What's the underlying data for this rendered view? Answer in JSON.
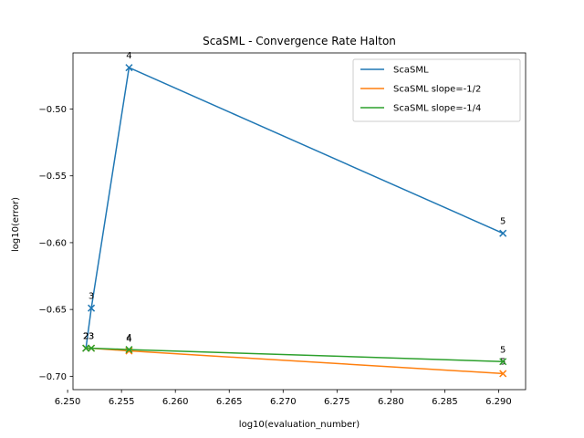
{
  "chart_data": {
    "type": "line",
    "title": "ScaSML - Convergence Rate Halton",
    "xlabel": "log10(evaluation_number)",
    "ylabel": "log10(error)",
    "xlim": [
      6.2505,
      6.2925
    ],
    "ylim": [
      -0.71,
      -0.458
    ],
    "xticks": [
      6.25,
      6.255,
      6.26,
      6.265,
      6.27,
      6.275,
      6.28,
      6.285,
      6.29
    ],
    "xtick_labels": [
      "6.250",
      "6.255",
      "6.260",
      "6.265",
      "6.270",
      "6.275",
      "6.280",
      "6.285",
      "6.290"
    ],
    "yticks": [
      -0.5,
      -0.55,
      -0.6,
      -0.65,
      -0.7
    ],
    "ytick_labels": [
      "−0.50",
      "−0.55",
      "−0.60",
      "−0.65",
      "−0.70"
    ],
    "grid": false,
    "legend_placement": "top-right",
    "series": [
      {
        "name": "ScaSML",
        "color": "#1f77b4",
        "x": [
          6.2517,
          6.2522,
          6.2557,
          6.2904
        ],
        "y": [
          -0.679,
          -0.649,
          -0.469,
          -0.593
        ],
        "point_labels": [
          "2",
          "3",
          "4",
          "5"
        ]
      },
      {
        "name": "ScaSML slope=-1/2",
        "color": "#ff7f0e",
        "x": [
          6.2517,
          6.2522,
          6.2557,
          6.2904
        ],
        "y": [
          -0.679,
          -0.679,
          -0.681,
          -0.698
        ],
        "point_labels": [
          "2",
          "3",
          "4",
          "5"
        ]
      },
      {
        "name": "ScaSML slope=-1/4",
        "color": "#2ca02c",
        "x": [
          6.2517,
          6.2522,
          6.2557,
          6.2904
        ],
        "y": [
          -0.679,
          -0.679,
          -0.68,
          -0.689
        ],
        "point_labels": [
          "2",
          "3",
          "4",
          "5"
        ]
      }
    ]
  }
}
